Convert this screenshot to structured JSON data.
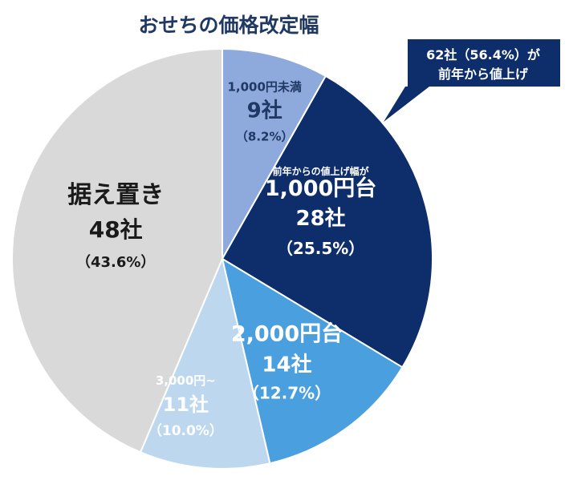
{
  "chart_data": {
    "type": "pie",
    "title": "おせちの価格改定幅",
    "unit": "社",
    "slices": [
      {
        "category": "1,000円未満",
        "value": 9,
        "percent_label": "（8.2%）",
        "count_label": "9社",
        "color": "#8ea9db",
        "text_color": "#1f3864"
      },
      {
        "category": "1,000円台",
        "sublabel": "前年からの値上げ幅が",
        "value": 28,
        "percent_label": "（25.5%）",
        "count_label": "28社",
        "color": "#0d2d6b",
        "text_color": "#ffffff"
      },
      {
        "category": "2,000円台",
        "value": 14,
        "percent_label": "（12.7%）",
        "count_label": "14社",
        "color": "#4a9fdf",
        "text_color": "#ffffff"
      },
      {
        "category": "3,000円~",
        "value": 11,
        "percent_label": "（10.0%）",
        "count_label": "11社",
        "color": "#bdd7ee",
        "text_color": "#ffffff"
      },
      {
        "category": "据え置き",
        "value": 48,
        "percent_label": "（43.6%）",
        "count_label": "48社",
        "color": "#d9d9d9",
        "text_color": "#1a1a1a"
      }
    ],
    "callout": {
      "line1": "62社（56.4%）が",
      "line2": "前年から値上げ",
      "color": "#0d2d6b"
    }
  }
}
